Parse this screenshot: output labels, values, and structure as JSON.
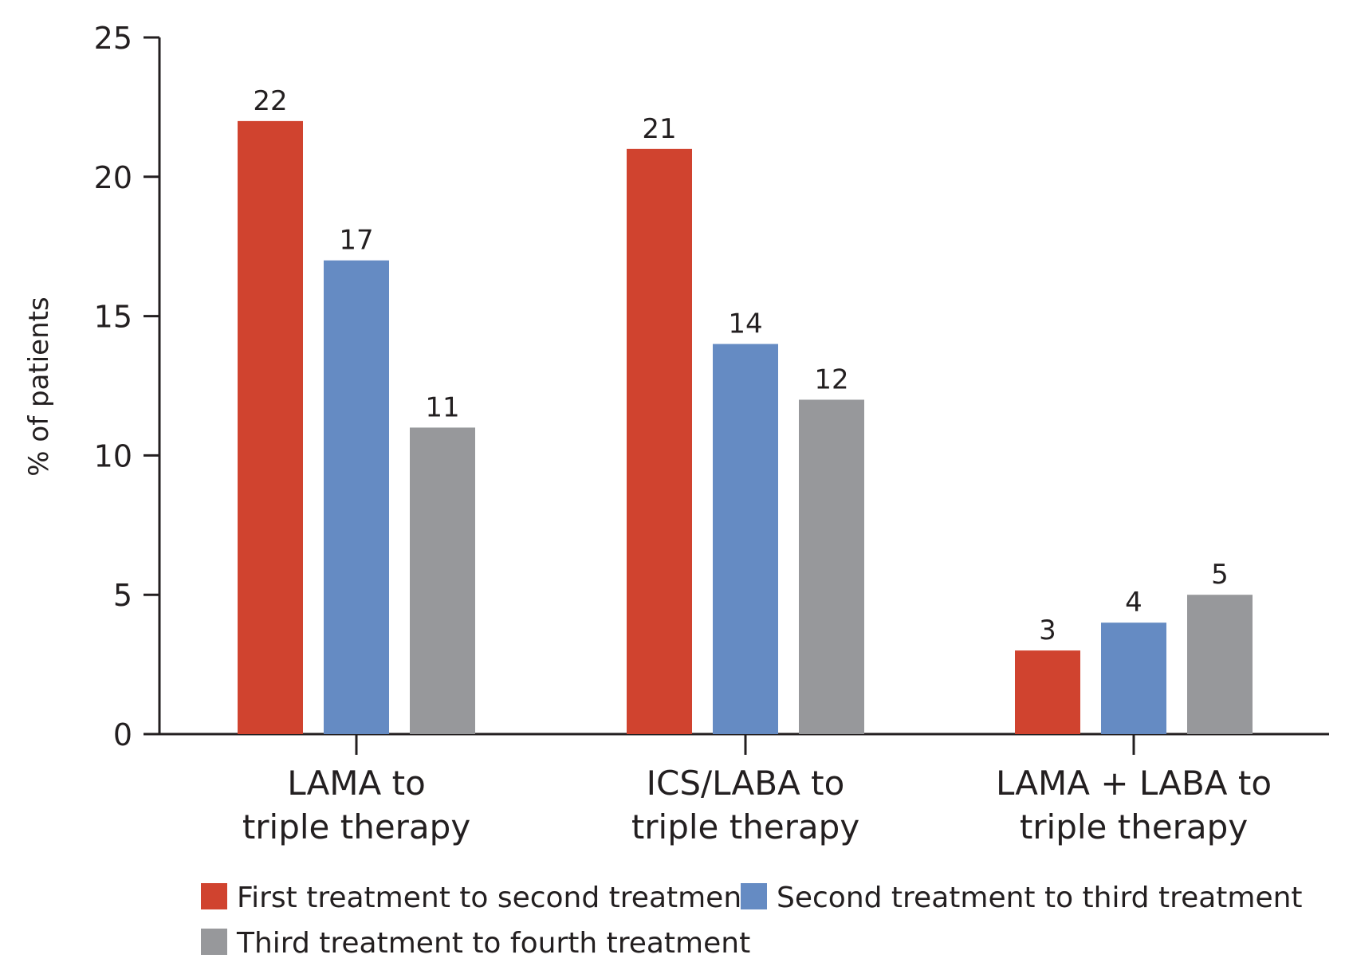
{
  "chart_data": {
    "type": "bar",
    "title": "",
    "xlabel": "",
    "ylabel": "% of patients",
    "ylim": [
      0,
      25
    ],
    "yticks": [
      "0",
      "5",
      "10",
      "15",
      "20",
      "25"
    ],
    "categories": [
      [
        "LAMA to",
        "triple therapy"
      ],
      [
        "ICS/LABA to",
        "triple therapy"
      ],
      [
        "LAMA + LABA to",
        "triple therapy"
      ]
    ],
    "series": [
      {
        "name": "First treatment to second treatment",
        "color": "#d0432f",
        "values": [
          22,
          21,
          3
        ]
      },
      {
        "name": "Second treatment to third treatment",
        "color": "#658bc3",
        "values": [
          17,
          14,
          4
        ]
      },
      {
        "name": "Third treatment to fourth treatment",
        "color": "#97989b",
        "values": [
          11,
          12,
          5
        ]
      }
    ],
    "value_labels": [
      [
        "22",
        "21",
        "3"
      ],
      [
        "17",
        "14",
        "4"
      ],
      [
        "11",
        "12",
        "5"
      ]
    ],
    "legend_position": "bottom",
    "grid": false
  }
}
